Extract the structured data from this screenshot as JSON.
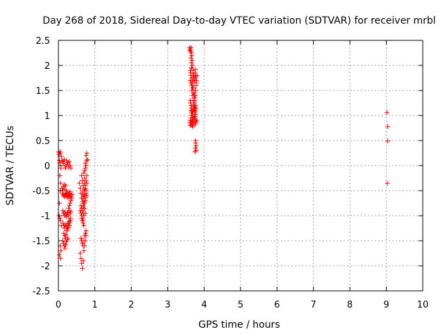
{
  "chart_data": {
    "type": "scatter",
    "title": "Day 268 of 2018, Sidereal Day-to-day VTEC variation (SDTVAR) for receiver mrbl",
    "xlabel": "GPS time / hours",
    "ylabel": "SDTVAR / TECUs",
    "xlim": [
      0,
      10
    ],
    "ylim": [
      -2.5,
      2.5
    ],
    "grid": true,
    "marker": "+",
    "color": "#ff0000",
    "x_ticks": [
      "0",
      "1",
      "2",
      "3",
      "4",
      "5",
      "6",
      "7",
      "8",
      "9",
      "10"
    ],
    "y_ticks": [
      "2.5",
      "2",
      "1.5",
      "1",
      "0.5",
      "0",
      "-0.5",
      "-1",
      "-1.5",
      "-2",
      "-2.5"
    ],
    "series": [
      {
        "name": "SDTVAR",
        "x": [
          0.0,
          0.02,
          0.04,
          0.06,
          0.08,
          0.03,
          0.05,
          0.07,
          0.04,
          0.06,
          0.05,
          0.03,
          0.02,
          0.04,
          0.06,
          0.08,
          0.05,
          0.07,
          0.03,
          0.06,
          0.1,
          0.12,
          0.14,
          0.16,
          0.18,
          0.2,
          0.22,
          0.24,
          0.26,
          0.28,
          0.3,
          0.32,
          0.34,
          0.11,
          0.13,
          0.15,
          0.17,
          0.19,
          0.21,
          0.23,
          0.25,
          0.27,
          0.29,
          0.31,
          0.33,
          0.12,
          0.14,
          0.16,
          0.18,
          0.2,
          0.22,
          0.24,
          0.26,
          0.28,
          0.3,
          0.32,
          0.34,
          0.13,
          0.15,
          0.17,
          0.19,
          0.21,
          0.23,
          0.25,
          0.27,
          0.29,
          0.31,
          0.33,
          0.15,
          0.17,
          0.19,
          0.21,
          0.23,
          0.25,
          0.27,
          0.29,
          0.31,
          0.33,
          0.1,
          0.12,
          0.14,
          0.16,
          0.18,
          0.2,
          0.12,
          0.14,
          0.16,
          0.18,
          0.2,
          0.22,
          0.24,
          0.26,
          0.22,
          0.24,
          0.26,
          0.28,
          0.3,
          0.32,
          0.34,
          0.36,
          0.38,
          0.28,
          0.3,
          0.32,
          0.34,
          0.36,
          0.58,
          0.6,
          0.62,
          0.64,
          0.66,
          0.68,
          0.7,
          0.72,
          0.74,
          0.76,
          0.78,
          0.6,
          0.62,
          0.64,
          0.66,
          0.68,
          0.7,
          0.72,
          0.74,
          0.76,
          0.78,
          0.62,
          0.64,
          0.66,
          0.68,
          0.7,
          0.72,
          0.74,
          0.76,
          0.6,
          0.62,
          0.64,
          0.66,
          0.68,
          0.7,
          0.72,
          0.74,
          0.76,
          0.64,
          0.66,
          0.68,
          0.7,
          0.72,
          0.74,
          0.62,
          0.64,
          0.66,
          0.68,
          0.7,
          0.64,
          0.66,
          0.68,
          0.7,
          0.66,
          0.68,
          0.72,
          0.74,
          0.76,
          0.78,
          0.7,
          0.72,
          0.74,
          0.76,
          0.78,
          0.8,
          0.72,
          0.74,
          0.76,
          0.78,
          0.66,
          0.68,
          0.7,
          0.72,
          0.68,
          0.7,
          0.72,
          0.74,
          3.6,
          3.61,
          3.62,
          3.63,
          3.64,
          3.65,
          3.66,
          3.67,
          3.68,
          3.62,
          3.63,
          3.64,
          3.65,
          3.66,
          3.67,
          3.68,
          3.69,
          3.7,
          3.64,
          3.65,
          3.66,
          3.67,
          3.68,
          3.69,
          3.7,
          3.71,
          3.72,
          3.73,
          3.74,
          3.75,
          3.76,
          3.77,
          3.78,
          3.79,
          3.8,
          3.72,
          3.73,
          3.74,
          3.75,
          3.76,
          3.77,
          3.78,
          3.62,
          3.63,
          3.64,
          3.65,
          3.66,
          3.67,
          3.68,
          3.69,
          3.7,
          3.71,
          3.72,
          3.73,
          3.74,
          3.75,
          3.76,
          3.77,
          3.61,
          3.62,
          3.63,
          3.64,
          3.65,
          3.66,
          3.67,
          3.68,
          3.69,
          3.7,
          3.64,
          3.66,
          3.68,
          3.7,
          3.72,
          3.74,
          3.76,
          3.66,
          3.68,
          3.7,
          3.72,
          3.74,
          3.76,
          3.78,
          3.62,
          3.64,
          3.66,
          3.68,
          3.7,
          3.72,
          3.74,
          3.76,
          3.63,
          3.65,
          3.67,
          3.69,
          3.71,
          3.73,
          3.75,
          3.77,
          3.79,
          3.76,
          3.77,
          3.78,
          3.76,
          3.78,
          3.75,
          9.02,
          9.04,
          9.04,
          9.03
        ],
        "y": [
          0.27,
          0.22,
          0.28,
          0.25,
          0.18,
          0.1,
          0.05,
          -0.05,
          -0.2,
          -0.35,
          -0.5,
          -0.75,
          -1.0,
          -1.05,
          -1.1,
          -1.2,
          -1.6,
          -1.7,
          -1.78,
          -1.85,
          0.1,
          0.08,
          0.05,
          0.12,
          0.0,
          -0.05,
          0.1,
          0.02,
          0.06,
          -0.02,
          0.08,
          0.0,
          -0.05,
          -0.55,
          -0.58,
          -0.6,
          -0.62,
          -0.58,
          -0.56,
          -0.6,
          -0.64,
          -0.58,
          -0.62,
          -0.55,
          -0.6,
          -0.9,
          -0.95,
          -1.0,
          -0.92,
          -0.98,
          -1.02,
          -0.96,
          -0.94,
          -1.0,
          -0.9,
          -0.96,
          -0.92,
          -1.15,
          -1.2,
          -1.25,
          -1.18,
          -1.22,
          -1.3,
          -1.16,
          -1.24,
          -1.12,
          -1.2,
          -1.1,
          -1.35,
          -1.4,
          -1.45,
          -1.38,
          -1.3,
          -1.25,
          -1.2,
          -1.15,
          -1.1,
          -1.05,
          -0.45,
          -0.5,
          -0.42,
          -0.38,
          -0.48,
          -0.4,
          -1.5,
          -1.55,
          -1.6,
          -1.65,
          -1.58,
          -1.52,
          -1.48,
          -1.45,
          -0.5,
          -0.55,
          -0.58,
          -0.62,
          -0.56,
          -0.52,
          -0.6,
          -0.65,
          -0.58,
          -0.85,
          -0.8,
          -0.75,
          -0.7,
          -0.65,
          -0.35,
          -0.45,
          -0.55,
          -0.65,
          -0.72,
          -0.8,
          -0.58,
          -0.48,
          -0.4,
          -0.3,
          -0.2,
          -0.9,
          -0.95,
          -1.0,
          -1.05,
          -1.1,
          -0.85,
          -0.75,
          -0.65,
          -0.5,
          -0.35,
          -1.45,
          -1.5,
          -1.55,
          -1.6,
          -1.5,
          -1.4,
          -1.35,
          -1.3,
          -1.75,
          -1.85,
          -1.95,
          -2.05,
          -1.9,
          -1.7,
          -1.6,
          -1.5,
          -1.4,
          -0.2,
          -0.3,
          -0.4,
          -0.5,
          -0.6,
          -0.7,
          -0.8,
          -0.85,
          -0.9,
          -0.95,
          -1.0,
          -1.05,
          -1.1,
          -1.15,
          -1.2,
          -0.55,
          -0.62,
          -0.1,
          -0.05,
          0.0,
          0.1,
          -0.15,
          -0.25,
          0.05,
          0.2,
          0.25,
          0.12,
          -0.35,
          -0.45,
          -0.55,
          -0.6,
          -0.3,
          -0.4,
          -0.5,
          -0.7,
          -0.65,
          -0.75,
          -0.85,
          -0.95,
          2.35,
          2.3,
          2.32,
          2.28,
          2.36,
          2.25,
          2.2,
          2.1,
          2.0,
          1.9,
          1.85,
          1.8,
          1.95,
          1.75,
          1.7,
          1.65,
          1.8,
          1.85,
          2.15,
          2.05,
          1.95,
          1.7,
          1.6,
          1.55,
          1.9,
          1.8,
          1.72,
          1.68,
          1.75,
          1.85,
          1.92,
          1.78,
          1.65,
          1.7,
          1.8,
          1.55,
          1.45,
          1.35,
          1.3,
          1.4,
          1.5,
          1.6,
          1.3,
          1.25,
          1.2,
          1.15,
          1.1,
          1.05,
          1.0,
          1.08,
          1.12,
          1.18,
          1.22,
          1.15,
          1.05,
          0.98,
          0.92,
          0.88,
          0.85,
          0.8,
          0.9,
          0.95,
          1.0,
          0.82,
          0.86,
          0.92,
          0.78,
          0.84,
          1.1,
          1.05,
          1.0,
          0.95,
          1.12,
          1.08,
          1.02,
          1.6,
          1.55,
          1.45,
          1.4,
          1.35,
          1.2,
          1.15,
          1.7,
          1.65,
          1.5,
          1.4,
          1.3,
          1.25,
          1.15,
          1.1,
          0.9,
          0.85,
          0.8,
          0.88,
          0.92,
          0.96,
          0.82,
          0.86,
          0.9,
          0.5,
          0.45,
          0.4,
          0.35,
          0.3,
          0.28,
          1.06,
          0.78,
          0.49,
          -0.35
        ]
      }
    ]
  }
}
